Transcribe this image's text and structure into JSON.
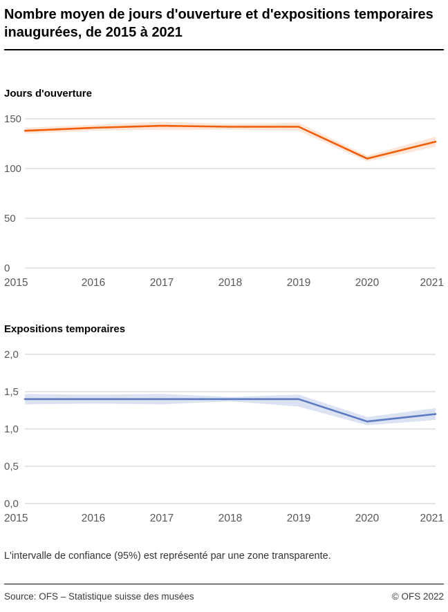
{
  "page_title": "Nombre moyen de jours d'ouverture et d'expositions temporaires inaugurées, de 2015 à 2021",
  "footnote": "L'intervalle de confiance (95%) est représenté par une zone transparente.",
  "footer": {
    "source": "Source: OFS – Statistique suisse des musées",
    "copyright": "© OFS 2022"
  },
  "colors": {
    "grid": "#c8c8c8",
    "orange_line": "#f25c05",
    "orange_band": "rgba(242,92,5,0.16)",
    "blue_line": "#5b7ac1",
    "blue_band": "rgba(91,122,193,0.22)",
    "tick_label": "#575757"
  },
  "chart_data": [
    {
      "type": "line",
      "title": "Jours d'ouverture",
      "xlabel": "",
      "ylabel": "",
      "x": [
        "2015",
        "2016",
        "2017",
        "2018",
        "2019",
        "2020",
        "2021"
      ],
      "ylim": [
        0,
        150
      ],
      "yticks": [
        {
          "v": 0,
          "label": "0"
        },
        {
          "v": 50,
          "label": "50"
        },
        {
          "v": 100,
          "label": "100"
        },
        {
          "v": 150,
          "label": "150"
        }
      ],
      "grid": true,
      "legend": "none",
      "color": "#f25c05",
      "band_color": "rgba(242,92,5,0.16)",
      "series": [
        {
          "name": "Jours d'ouverture (moyenne)",
          "values": [
            138,
            141,
            143,
            142,
            142,
            110,
            127
          ],
          "ci_low": [
            135,
            138,
            139,
            139,
            138,
            107,
            122
          ],
          "ci_high": [
            141,
            144,
            147,
            145,
            146,
            113,
            132
          ]
        }
      ]
    },
    {
      "type": "line",
      "title": "Expositions temporaires",
      "xlabel": "",
      "ylabel": "",
      "x": [
        "2015",
        "2016",
        "2017",
        "2018",
        "2019",
        "2020",
        "2021"
      ],
      "ylim": [
        0,
        2
      ],
      "yticks": [
        {
          "v": 0,
          "label": "0,0"
        },
        {
          "v": 0.5,
          "label": "0,5"
        },
        {
          "v": 1,
          "label": "1,0"
        },
        {
          "v": 1.5,
          "label": "1,5"
        },
        {
          "v": 2,
          "label": "2,0"
        }
      ],
      "grid": true,
      "legend": "none",
      "color": "#5b7ac1",
      "band_color": "rgba(91,122,193,0.22)",
      "series": [
        {
          "name": "Expositions temporaires (moyenne)",
          "values": [
            1.4,
            1.4,
            1.4,
            1.4,
            1.4,
            1.1,
            1.2
          ],
          "ci_low": [
            1.33,
            1.34,
            1.33,
            1.37,
            1.3,
            1.05,
            1.12
          ],
          "ci_high": [
            1.47,
            1.46,
            1.47,
            1.43,
            1.46,
            1.16,
            1.28
          ]
        }
      ]
    }
  ]
}
